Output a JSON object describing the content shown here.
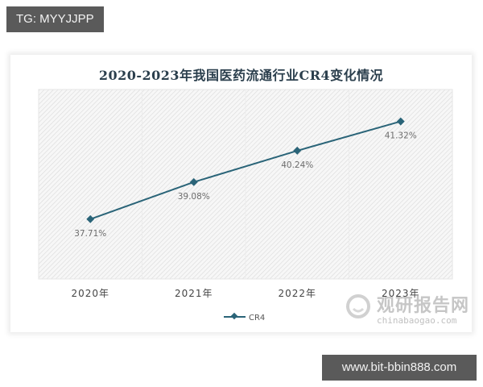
{
  "overlay": {
    "top_tag": "TG: MYYJJPP",
    "bottom_tag": "www.bit-bbin888.com"
  },
  "watermark": {
    "name_cn": "观研报告网",
    "domain": "chinabaogao.com"
  },
  "chart_data": {
    "type": "line",
    "title": "2020-2023年我国医药流通行业CR4变化情况",
    "categories": [
      "2020年",
      "2021年",
      "2022年",
      "2023年"
    ],
    "series": [
      {
        "name": "CR4",
        "values": [
          37.71,
          39.08,
          40.24,
          41.32
        ],
        "labels": [
          "37.71%",
          "39.08%",
          "40.24%",
          "41.32%"
        ],
        "color": "#2a6478",
        "marker": "diamond"
      }
    ],
    "xlabel": "",
    "ylabel": "",
    "y_unit": "%",
    "ylim": [
      35.5,
      42.5
    ],
    "grid": false,
    "y_axis_visible": false,
    "plot_background": "diagonal-hatch light gray",
    "legend_position": "bottom-center"
  }
}
